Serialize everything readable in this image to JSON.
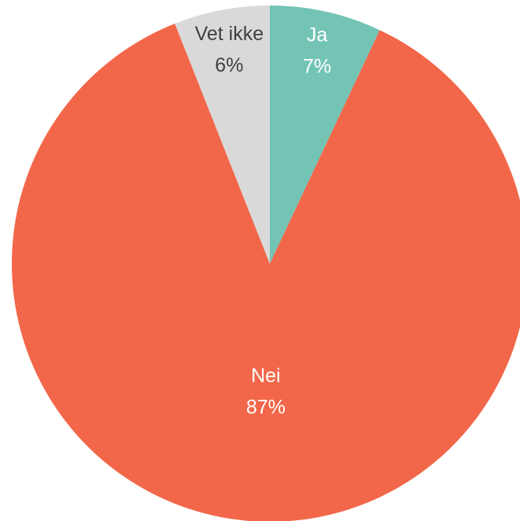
{
  "chart_data": {
    "type": "pie",
    "categories": [
      "Ja",
      "Nei",
      "Vet ikke"
    ],
    "values": [
      7,
      87,
      6
    ],
    "value_labels": [
      "7%",
      "87%",
      "6%"
    ],
    "colors": [
      "#73c4b4",
      "#f2674a",
      "#d9d9d9"
    ]
  }
}
